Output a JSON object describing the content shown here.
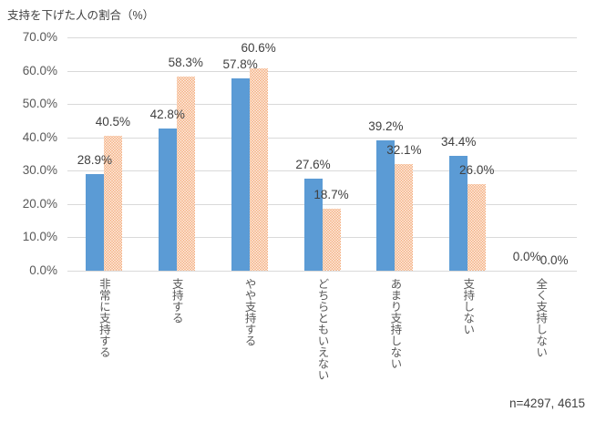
{
  "chart_data": {
    "type": "bar",
    "title": "支持を下げた人の割合（%）",
    "categories": [
      "非常に支持する",
      "支持する",
      "やや支持する",
      "どちらともいえない",
      "あまり支持しない",
      "支持しない",
      "全く支持しない"
    ],
    "series": [
      {
        "name": "blue-solid-bars",
        "color": "#5B9BD5",
        "pattern": "solid",
        "values": [
          28.9,
          42.8,
          57.8,
          27.6,
          39.2,
          34.4,
          0.0
        ]
      },
      {
        "name": "orange-dotted-bars",
        "color": "#ED7D31",
        "pattern": "dotted",
        "values": [
          40.5,
          58.3,
          60.6,
          18.7,
          32.1,
          26.0,
          0.0
        ]
      }
    ],
    "data_labels": [
      [
        "28.9%",
        "42.8%",
        "57.8%",
        "27.6%",
        "39.2%",
        "34.4%",
        "0.0%"
      ],
      [
        "40.5%",
        "58.3%",
        "60.6%",
        "18.7%",
        "32.1%",
        "26.0%",
        "0.0%"
      ]
    ],
    "y_ticks": [
      "70.0%",
      "60.0%",
      "50.0%",
      "40.0%",
      "30.0%",
      "20.0%",
      "10.0%",
      "0.0%"
    ],
    "ylim": [
      0,
      70
    ],
    "grid": true,
    "legend": "none",
    "annotation": "n=4297, 4615",
    "colors": {
      "gridline": "#D9D9D9",
      "axis_label": "#595959",
      "data_label": "#404040",
      "title": "#404040"
    }
  }
}
